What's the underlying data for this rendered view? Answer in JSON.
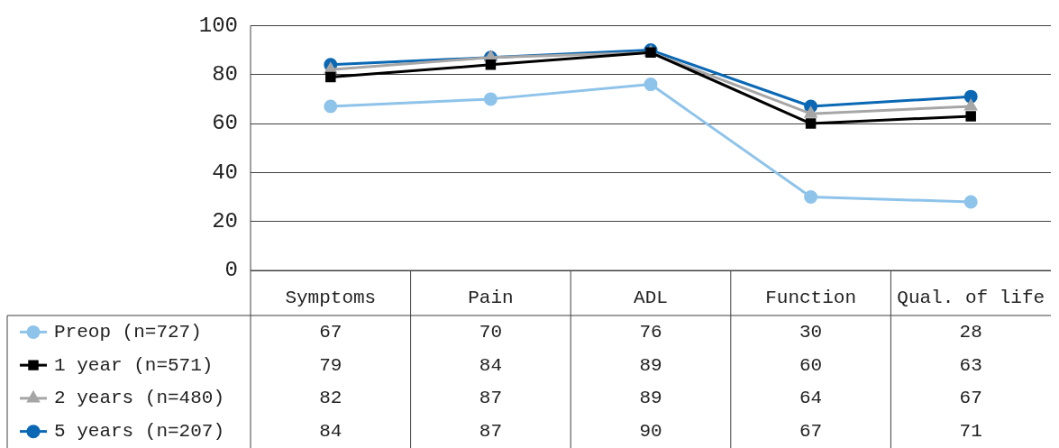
{
  "chart_data": {
    "type": "line",
    "categories": [
      "Symptoms",
      "Pain",
      "ADL",
      "Function",
      "Qual. of life"
    ],
    "series": [
      {
        "name": "Preop (n=727)",
        "color": "#8ec3ea",
        "marker": "circle",
        "values": [
          67,
          70,
          76,
          30,
          28
        ]
      },
      {
        "name": "1 year (n=571)",
        "color": "#000000",
        "marker": "square",
        "values": [
          79,
          84,
          89,
          60,
          63
        ]
      },
      {
        "name": "2 years (n=480)",
        "color": "#a6a6a6",
        "marker": "triangle",
        "values": [
          82,
          87,
          89,
          64,
          67
        ]
      },
      {
        "name": "5 years (n=207)",
        "color": "#0a68b4",
        "marker": "circle",
        "values": [
          84,
          87,
          90,
          67,
          71
        ]
      }
    ],
    "ylim": [
      0,
      100
    ],
    "yticks": [
      0,
      20,
      40,
      60,
      80,
      100
    ],
    "grid": "y",
    "legend": "bottom left",
    "data_labels": true
  }
}
